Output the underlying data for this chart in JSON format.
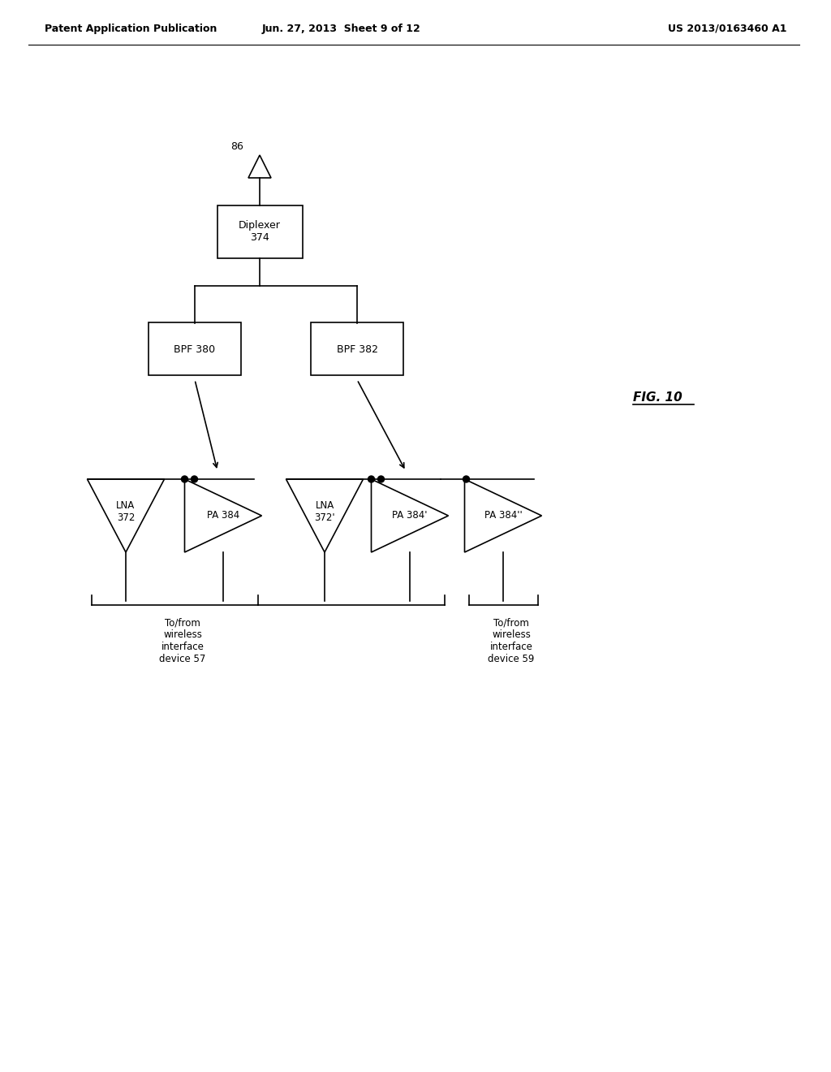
{
  "bg_color": "#ffffff",
  "header_left": "Patent Application Publication",
  "header_center": "Jun. 27, 2013  Sheet 9 of 12",
  "header_right": "US 2013/0163460 A1",
  "fig_label": "FIG. 10",
  "antenna_label": "86",
  "diplexer_label": "Diplexer\n374",
  "bpf1_label": "BPF 380",
  "bpf2_label": "BPF 382",
  "lna1_label": "LNA\n372",
  "lna2_label": "LNA\n372'",
  "pa1_label": "PA 384",
  "pa2_label": "PA 384'",
  "pa3_label": "PA 384''",
  "dev1_label": "To/from\nwireless\ninterface\ndevice 57",
  "dev2_label": "To/from\nwireless\ninterface\ndevice 59"
}
